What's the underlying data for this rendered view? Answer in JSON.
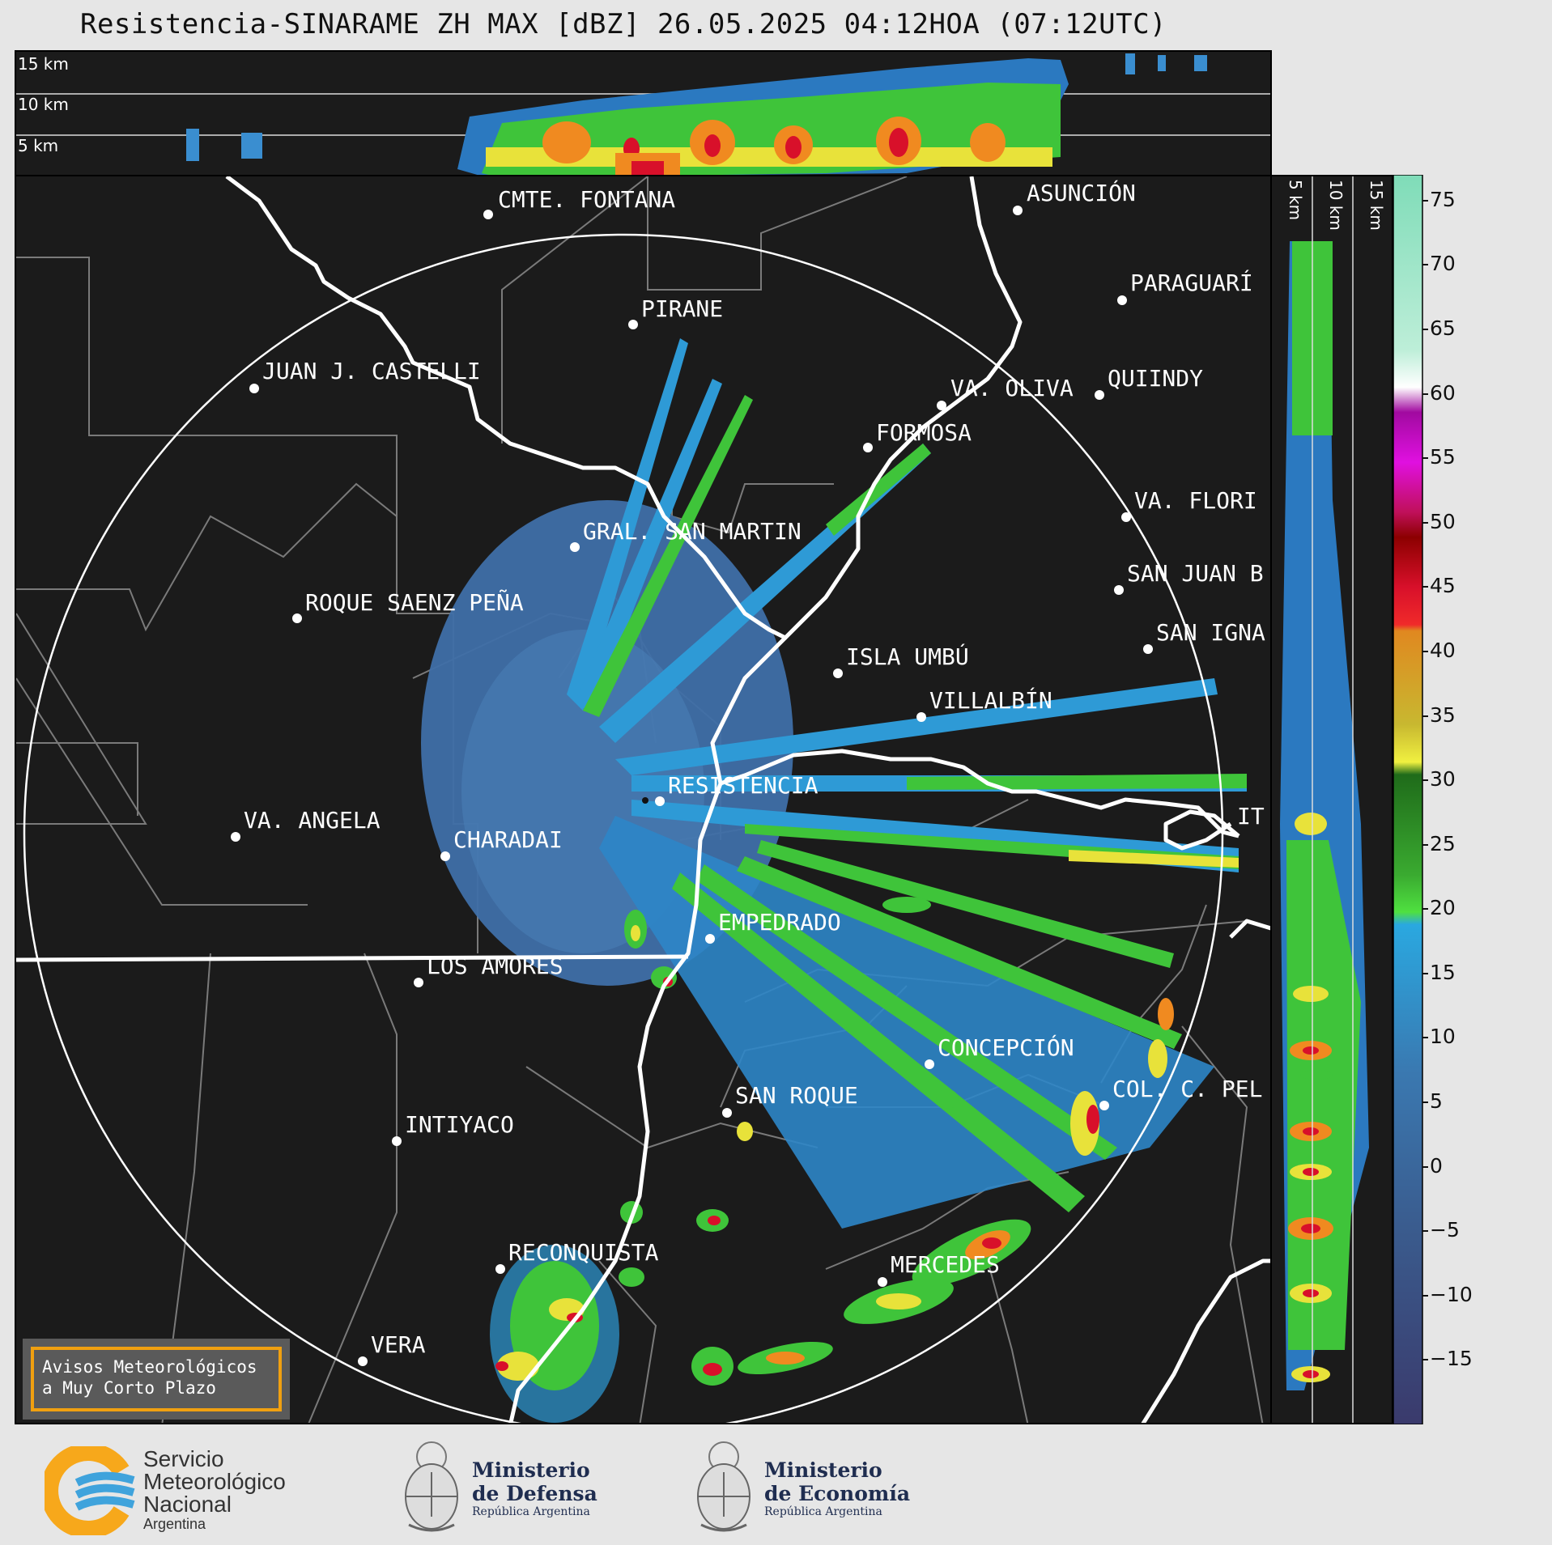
{
  "title": "Resistencia-SINARAME ZH MAX [dBZ] 26.05.2025 04:12HOA (07:12UTC)",
  "top_panel": {
    "altitude_labels": [
      "15 km",
      "10 km",
      "5 km"
    ]
  },
  "side_panel": {
    "altitude_labels": [
      "5 km",
      "10 km",
      "15 km"
    ]
  },
  "colorbar": {
    "unit": "dBZ",
    "ticks": [
      "75",
      "70",
      "65",
      "60",
      "55",
      "50",
      "45",
      "40",
      "35",
      "30",
      "25",
      "20",
      "15",
      "10",
      "5",
      "0",
      "−5",
      "−10",
      "−15"
    ],
    "range": [
      -20,
      77
    ]
  },
  "cities": [
    {
      "name": "CMTE. FONTANA"
    },
    {
      "name": "ASUNCIÓN"
    },
    {
      "name": "PIRANE"
    },
    {
      "name": "PARAGUARÍ"
    },
    {
      "name": "JUAN J. CASTELLI"
    },
    {
      "name": "QUIINDY"
    },
    {
      "name": "VA. OLIVA"
    },
    {
      "name": "FORMOSA"
    },
    {
      "name": "VA. FLORI"
    },
    {
      "name": "GRAL. SAN MARTIN"
    },
    {
      "name": "SAN JUAN B"
    },
    {
      "name": "ROQUE SAENZ PEÑA"
    },
    {
      "name": "SAN IGNA"
    },
    {
      "name": "ISLA UMBÚ"
    },
    {
      "name": "VILLALBÍN"
    },
    {
      "name": "RESISTENCIA"
    },
    {
      "name": "VA. ANGELA"
    },
    {
      "name": "CHARADAI"
    },
    {
      "name": "IT"
    },
    {
      "name": "EMPEDRADO"
    },
    {
      "name": "LOS AMORES"
    },
    {
      "name": "CONCEPCIÓN"
    },
    {
      "name": "SAN ROQUE"
    },
    {
      "name": "COL. C. PEL"
    },
    {
      "name": "INTIYACO"
    },
    {
      "name": "RECONQUISTA"
    },
    {
      "name": "MERCEDES"
    },
    {
      "name": "VERA"
    }
  ],
  "warning_box": {
    "line1": "Avisos Meteorológicos",
    "line2": "a Muy Corto Plazo"
  },
  "logos": {
    "smn": {
      "line1": "Servicio",
      "line2": "Meteorológico",
      "line3": "Nacional",
      "line4": "Argentina"
    },
    "defensa": {
      "line1": "Ministerio",
      "line2": "de Defensa",
      "line3": "República Argentina"
    },
    "economia": {
      "line1": "Ministerio",
      "line2": "de Economía",
      "line3": "República Argentina"
    }
  }
}
